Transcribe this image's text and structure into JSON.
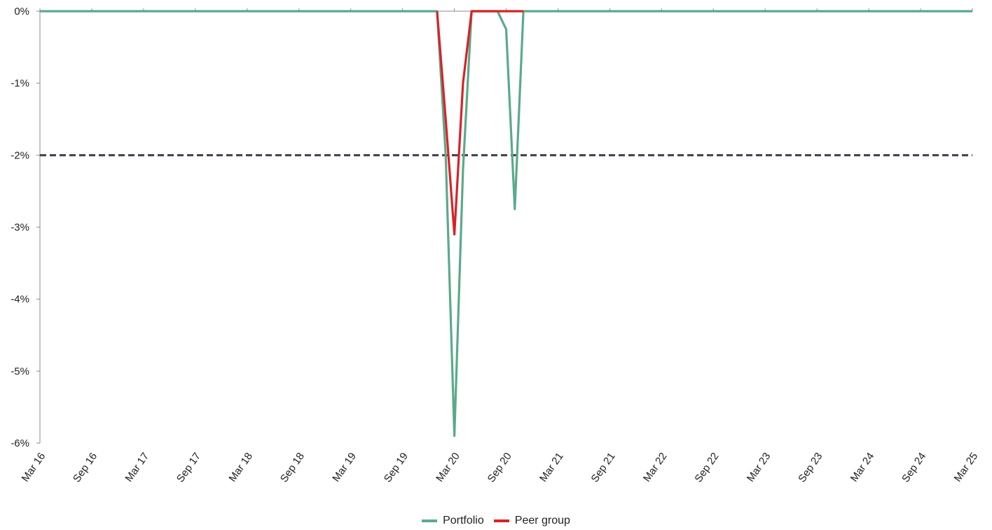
{
  "chart_data": {
    "type": "line",
    "x_tick_labels": [
      "Mar 16",
      "Sep 16",
      "Mar 17",
      "Sep 17",
      "Mar 18",
      "Sep 18",
      "Mar 19",
      "Sep 19",
      "Mar 20",
      "Sep 20",
      "Mar 21",
      "Sep 21",
      "Mar 22",
      "Sep 22",
      "Mar 23",
      "Sep 23",
      "Mar 24",
      "Sep 24",
      "Mar 25"
    ],
    "y_tick_labels": [
      "0%",
      "-1%",
      "-2%",
      "-3%",
      "-4%",
      "-5%",
      "-6%"
    ],
    "ylim": [
      -6,
      0
    ],
    "reference_line": {
      "value": -2,
      "style": "dashed",
      "color": "#3d3d4d"
    },
    "grid": false,
    "legend_position": "bottom-center",
    "series": [
      {
        "name": "Portfolio",
        "color": "#5aaa8a",
        "points": [
          [
            "2016-03",
            0
          ],
          [
            "2020-01",
            0
          ],
          [
            "2020-02",
            -2.0
          ],
          [
            "2020-03",
            -5.9
          ],
          [
            "2020-04",
            -2.2
          ],
          [
            "2020-05",
            0
          ],
          [
            "2020-08",
            0
          ],
          [
            "2020-09",
            -0.25
          ],
          [
            "2020-10",
            -2.75
          ],
          [
            "2020-11",
            0
          ],
          [
            "2025-03",
            0
          ]
        ]
      },
      {
        "name": "Peer group",
        "color": "#d92228",
        "points": [
          [
            "2020-01",
            0
          ],
          [
            "2020-02",
            -1.5
          ],
          [
            "2020-03",
            -3.1
          ],
          [
            "2020-04",
            -1.0
          ],
          [
            "2020-05",
            0
          ],
          [
            "2020-06",
            0
          ],
          [
            "2020-08",
            0
          ],
          [
            "2020-11",
            0
          ]
        ]
      }
    ]
  },
  "legend": {
    "items": [
      {
        "label": "Portfolio",
        "color": "#5aaa8a"
      },
      {
        "label": "Peer group",
        "color": "#d92228"
      }
    ]
  }
}
